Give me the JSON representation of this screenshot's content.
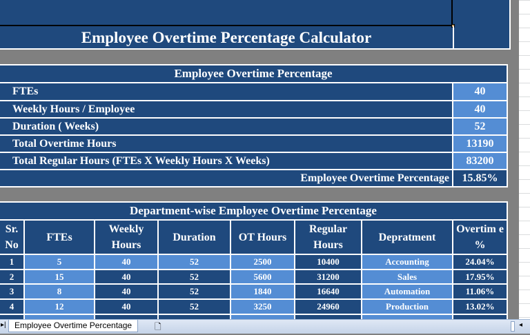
{
  "title": "Employee Overtime Percentage Calculator",
  "summary": {
    "heading": "Employee Overtime Percentage",
    "rows": [
      {
        "label": "FTEs",
        "value": "40"
      },
      {
        "label": "Weekly Hours / Employee",
        "value": "40"
      },
      {
        "label": "Duration ( Weeks)",
        "value": "52"
      },
      {
        "label": "Total Overtime Hours",
        "value": "13190"
      },
      {
        "label": "Total Regular Hours (FTEs X Weekly Hours X  Weeks)",
        "value": "83200"
      }
    ],
    "result_label": "Employee Overtime Percentage",
    "result_value": "15.85%"
  },
  "dept": {
    "heading": "Department-wise Employee Overtime Percentage",
    "columns": [
      "Sr. No",
      "FTEs",
      "Weekly Hours",
      "Duration",
      "OT Hours",
      "Regular Hours",
      "Depratment",
      "Overtim e %"
    ],
    "rows": [
      [
        "1",
        "5",
        "40",
        "52",
        "2500",
        "10400",
        "Accounting",
        "24.04%"
      ],
      [
        "2",
        "15",
        "40",
        "52",
        "5600",
        "31200",
        "Sales",
        "17.95%"
      ],
      [
        "3",
        "8",
        "40",
        "52",
        "1840",
        "16640",
        "Automation",
        "11.06%"
      ],
      [
        "4",
        "12",
        "40",
        "52",
        "3250",
        "24960",
        "Production",
        "13.02%"
      ]
    ]
  },
  "sheet_tab": "Employee Overtime Percentage",
  "colors": {
    "dark": "#1f497d",
    "light": "#548dd4"
  }
}
